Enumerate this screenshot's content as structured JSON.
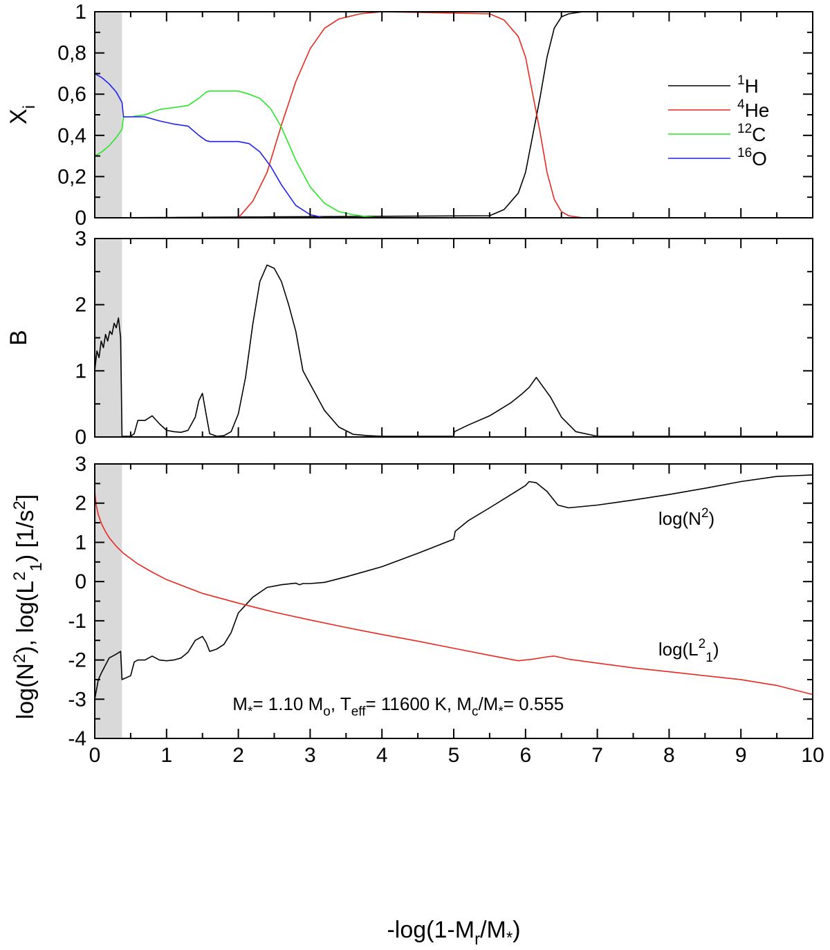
{
  "figure": {
    "xlabel": "-log(1-M_r/M_*)",
    "xlim": [
      0,
      10
    ],
    "x_ticks": [
      "0",
      "1",
      "2",
      "3",
      "4",
      "5",
      "6",
      "7",
      "8",
      "9",
      "10"
    ],
    "shaded_region": [
      0,
      0.38
    ],
    "shade_color": "#d9d9d9"
  },
  "chart_data": [
    {
      "type": "line",
      "title": "",
      "ylabel": "X_i",
      "ylim": [
        0,
        1
      ],
      "y_ticks": [
        "0",
        "0,2",
        "0,4",
        "0,6",
        "0,8",
        "1"
      ],
      "legend_position": "top-right",
      "series": [
        {
          "name": "1H",
          "label_sup": "1",
          "label_main": "H",
          "color": "#000000",
          "x": [
            0,
            5.5,
            5.7,
            5.9,
            6.0,
            6.1,
            6.2,
            6.3,
            6.4,
            6.5,
            6.6,
            6.8,
            10
          ],
          "y": [
            0,
            0.01,
            0.04,
            0.12,
            0.22,
            0.4,
            0.58,
            0.78,
            0.92,
            0.975,
            0.99,
            1.0,
            1.0
          ]
        },
        {
          "name": "4He",
          "label_sup": "4",
          "label_main": "He",
          "color": "#e8281e",
          "x": [
            0,
            2.0,
            2.2,
            2.4,
            2.6,
            2.8,
            3.0,
            3.2,
            3.4,
            3.7,
            4.0,
            5.5,
            5.7,
            5.9,
            6.0,
            6.1,
            6.2,
            6.3,
            6.4,
            6.5,
            6.6,
            6.8,
            10
          ],
          "y": [
            0,
            0,
            0.08,
            0.22,
            0.45,
            0.66,
            0.82,
            0.92,
            0.965,
            0.99,
            1.0,
            0.99,
            0.96,
            0.88,
            0.78,
            0.6,
            0.42,
            0.22,
            0.09,
            0.03,
            0.01,
            0,
            0
          ]
        },
        {
          "name": "12C",
          "label_sup": "12",
          "label_main": "C",
          "color": "#26e626",
          "x": [
            0,
            0.1,
            0.2,
            0.3,
            0.38,
            0.4,
            0.5,
            0.7,
            0.9,
            1.1,
            1.3,
            1.45,
            1.55,
            1.6,
            2.0,
            2.15,
            2.3,
            2.45,
            2.6,
            2.8,
            3.0,
            3.2,
            3.4,
            3.6,
            3.8,
            4.0,
            10
          ],
          "y": [
            0.3,
            0.32,
            0.35,
            0.39,
            0.43,
            0.49,
            0.49,
            0.5,
            0.525,
            0.535,
            0.545,
            0.58,
            0.61,
            0.615,
            0.615,
            0.6,
            0.58,
            0.53,
            0.44,
            0.28,
            0.15,
            0.07,
            0.03,
            0.015,
            0.005,
            0,
            0
          ]
        },
        {
          "name": "16O",
          "label_sup": "16",
          "label_main": "O",
          "color": "#1e1eef",
          "x": [
            0,
            0.1,
            0.2,
            0.3,
            0.38,
            0.4,
            0.5,
            0.7,
            0.9,
            1.1,
            1.3,
            1.45,
            1.55,
            1.6,
            2.0,
            2.15,
            2.3,
            2.45,
            2.6,
            2.8,
            3.0,
            3.2,
            10
          ],
          "y": [
            0.7,
            0.68,
            0.65,
            0.61,
            0.56,
            0.49,
            0.49,
            0.49,
            0.47,
            0.455,
            0.445,
            0.4,
            0.375,
            0.37,
            0.37,
            0.36,
            0.32,
            0.25,
            0.16,
            0.06,
            0.015,
            0,
            0
          ]
        }
      ]
    },
    {
      "type": "line",
      "title": "",
      "ylabel": "B",
      "ylim": [
        0,
        3
      ],
      "y_ticks": [
        "0",
        "1",
        "2",
        "3"
      ],
      "series": [
        {
          "name": "B",
          "color": "#000000",
          "x": [
            0,
            0.03,
            0.06,
            0.09,
            0.12,
            0.15,
            0.18,
            0.21,
            0.24,
            0.27,
            0.3,
            0.33,
            0.36,
            0.38,
            0.5,
            0.55,
            0.6,
            0.7,
            0.8,
            0.9,
            1.0,
            1.1,
            1.2,
            1.3,
            1.4,
            1.45,
            1.5,
            1.55,
            1.6,
            1.7,
            1.8,
            1.9,
            2.0,
            2.1,
            2.2,
            2.3,
            2.4,
            2.5,
            2.6,
            2.7,
            2.8,
            2.9,
            3.0,
            3.2,
            3.4,
            3.6,
            3.8,
            4.0,
            5.0,
            5.01,
            5.2,
            5.5,
            5.8,
            5.95,
            6.05,
            6.15,
            6.25,
            6.35,
            6.5,
            6.7,
            7,
            10
          ],
          "y": [
            1.0,
            1.3,
            1.2,
            1.45,
            1.35,
            1.55,
            1.45,
            1.6,
            1.55,
            1.72,
            1.65,
            1.8,
            1.5,
            0.01,
            0.01,
            0.05,
            0.25,
            0.25,
            0.32,
            0.2,
            0.1,
            0.08,
            0.07,
            0.1,
            0.3,
            0.55,
            0.66,
            0.35,
            0.05,
            0.01,
            0.02,
            0.08,
            0.35,
            0.9,
            1.7,
            2.35,
            2.6,
            2.55,
            2.35,
            2.0,
            1.6,
            1.0,
            0.8,
            0.4,
            0.15,
            0.04,
            0.02,
            0.01,
            0.01,
            0.08,
            0.18,
            0.32,
            0.52,
            0.65,
            0.75,
            0.9,
            0.75,
            0.6,
            0.3,
            0.08,
            0.01,
            0.01
          ]
        }
      ]
    },
    {
      "type": "line",
      "title": "",
      "ylabel": "log(N^2), log(L^2_1) [1/s^2]",
      "ylim": [
        -4,
        3
      ],
      "y_ticks": [
        "-4",
        "-3",
        "-2",
        "-1",
        "0",
        "1",
        "2",
        "3"
      ],
      "annotation": {
        "text": "M*= 1.10 Mo, Teff= 11600 K, Mc/M*=  0.555"
      },
      "series": [
        {
          "name": "log(N2)",
          "label": "log(N2)",
          "color": "#000000",
          "x": [
            0,
            0.05,
            0.1,
            0.2,
            0.3,
            0.36,
            0.38,
            0.5,
            0.55,
            0.6,
            0.7,
            0.8,
            0.85,
            0.9,
            1.0,
            1.1,
            1.2,
            1.3,
            1.4,
            1.5,
            1.55,
            1.6,
            1.7,
            1.8,
            1.9,
            2.0,
            2.2,
            2.4,
            2.6,
            2.8,
            2.85,
            2.9,
            3.0,
            3.2,
            3.5,
            4.0,
            4.5,
            5.0,
            5.02,
            5.2,
            5.5,
            5.8,
            6.0,
            6.05,
            6.15,
            6.3,
            6.45,
            6.6,
            7.0,
            7.5,
            8.0,
            8.5,
            9.0,
            9.5,
            10.0
          ],
          "y": [
            -3.0,
            -2.5,
            -2.3,
            -1.95,
            -1.85,
            -1.78,
            -2.5,
            -2.4,
            -2.05,
            -2.0,
            -2.0,
            -1.9,
            -1.95,
            -2.0,
            -2.02,
            -2.0,
            -1.95,
            -1.8,
            -1.5,
            -1.4,
            -1.55,
            -1.78,
            -1.72,
            -1.6,
            -1.3,
            -0.8,
            -0.4,
            -0.15,
            -0.08,
            -0.04,
            -0.08,
            -0.05,
            -0.05,
            -0.02,
            0.12,
            0.38,
            0.72,
            1.08,
            1.28,
            1.55,
            1.88,
            2.22,
            2.45,
            2.55,
            2.52,
            2.3,
            1.95,
            1.88,
            1.95,
            2.08,
            2.22,
            2.38,
            2.55,
            2.68,
            2.72
          ]
        },
        {
          "name": "log(L2_1)",
          "label": "log(L2_1)",
          "color": "#e8281e",
          "x": [
            0,
            0.02,
            0.05,
            0.1,
            0.15,
            0.2,
            0.3,
            0.4,
            0.6,
            0.8,
            1.0,
            1.5,
            2.0,
            2.5,
            3.0,
            3.5,
            4.0,
            4.5,
            5.0,
            5.5,
            5.9,
            6.1,
            6.3,
            6.4,
            6.6,
            7.0,
            7.5,
            8.0,
            8.5,
            9.0,
            9.5,
            10.0
          ],
          "y": [
            2.3,
            1.95,
            1.7,
            1.45,
            1.27,
            1.12,
            0.9,
            0.72,
            0.45,
            0.24,
            0.05,
            -0.3,
            -0.55,
            -0.78,
            -0.98,
            -1.17,
            -1.35,
            -1.52,
            -1.7,
            -1.88,
            -2.02,
            -1.98,
            -1.92,
            -1.9,
            -1.98,
            -2.08,
            -2.2,
            -2.3,
            -2.4,
            -2.5,
            -2.65,
            -2.88
          ]
        }
      ]
    }
  ]
}
